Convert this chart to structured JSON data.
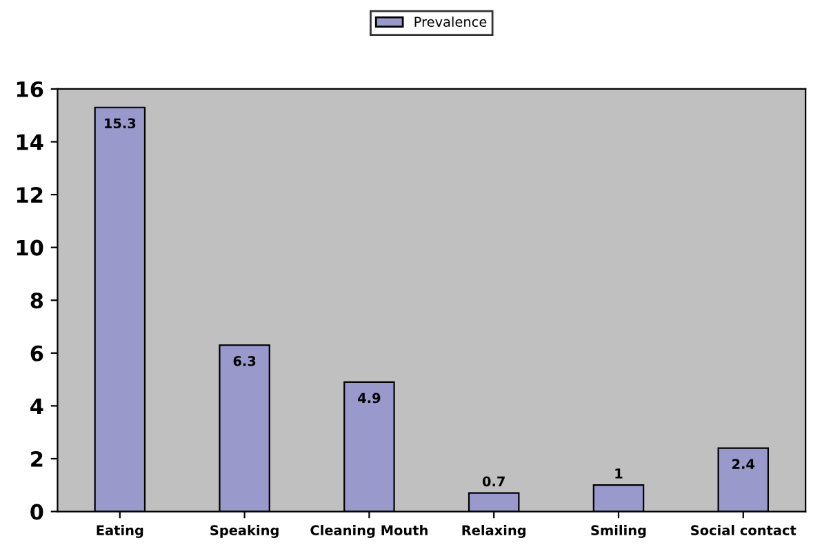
{
  "chart_data": {
    "type": "bar",
    "categories": [
      "Eating",
      "Speaking",
      "Cleaning Mouth",
      "Relaxing",
      "Smiling",
      "Social contact"
    ],
    "series": [
      {
        "name": "Prevalence",
        "color": "#9999cc",
        "values": [
          15.3,
          6.3,
          4.9,
          0.7,
          1,
          2.4
        ]
      }
    ],
    "ylim": [
      0,
      16
    ],
    "yticks": [
      0,
      2,
      4,
      6,
      8,
      10,
      12,
      14,
      16
    ],
    "data_labels": true,
    "legend": "top",
    "grid": false
  }
}
